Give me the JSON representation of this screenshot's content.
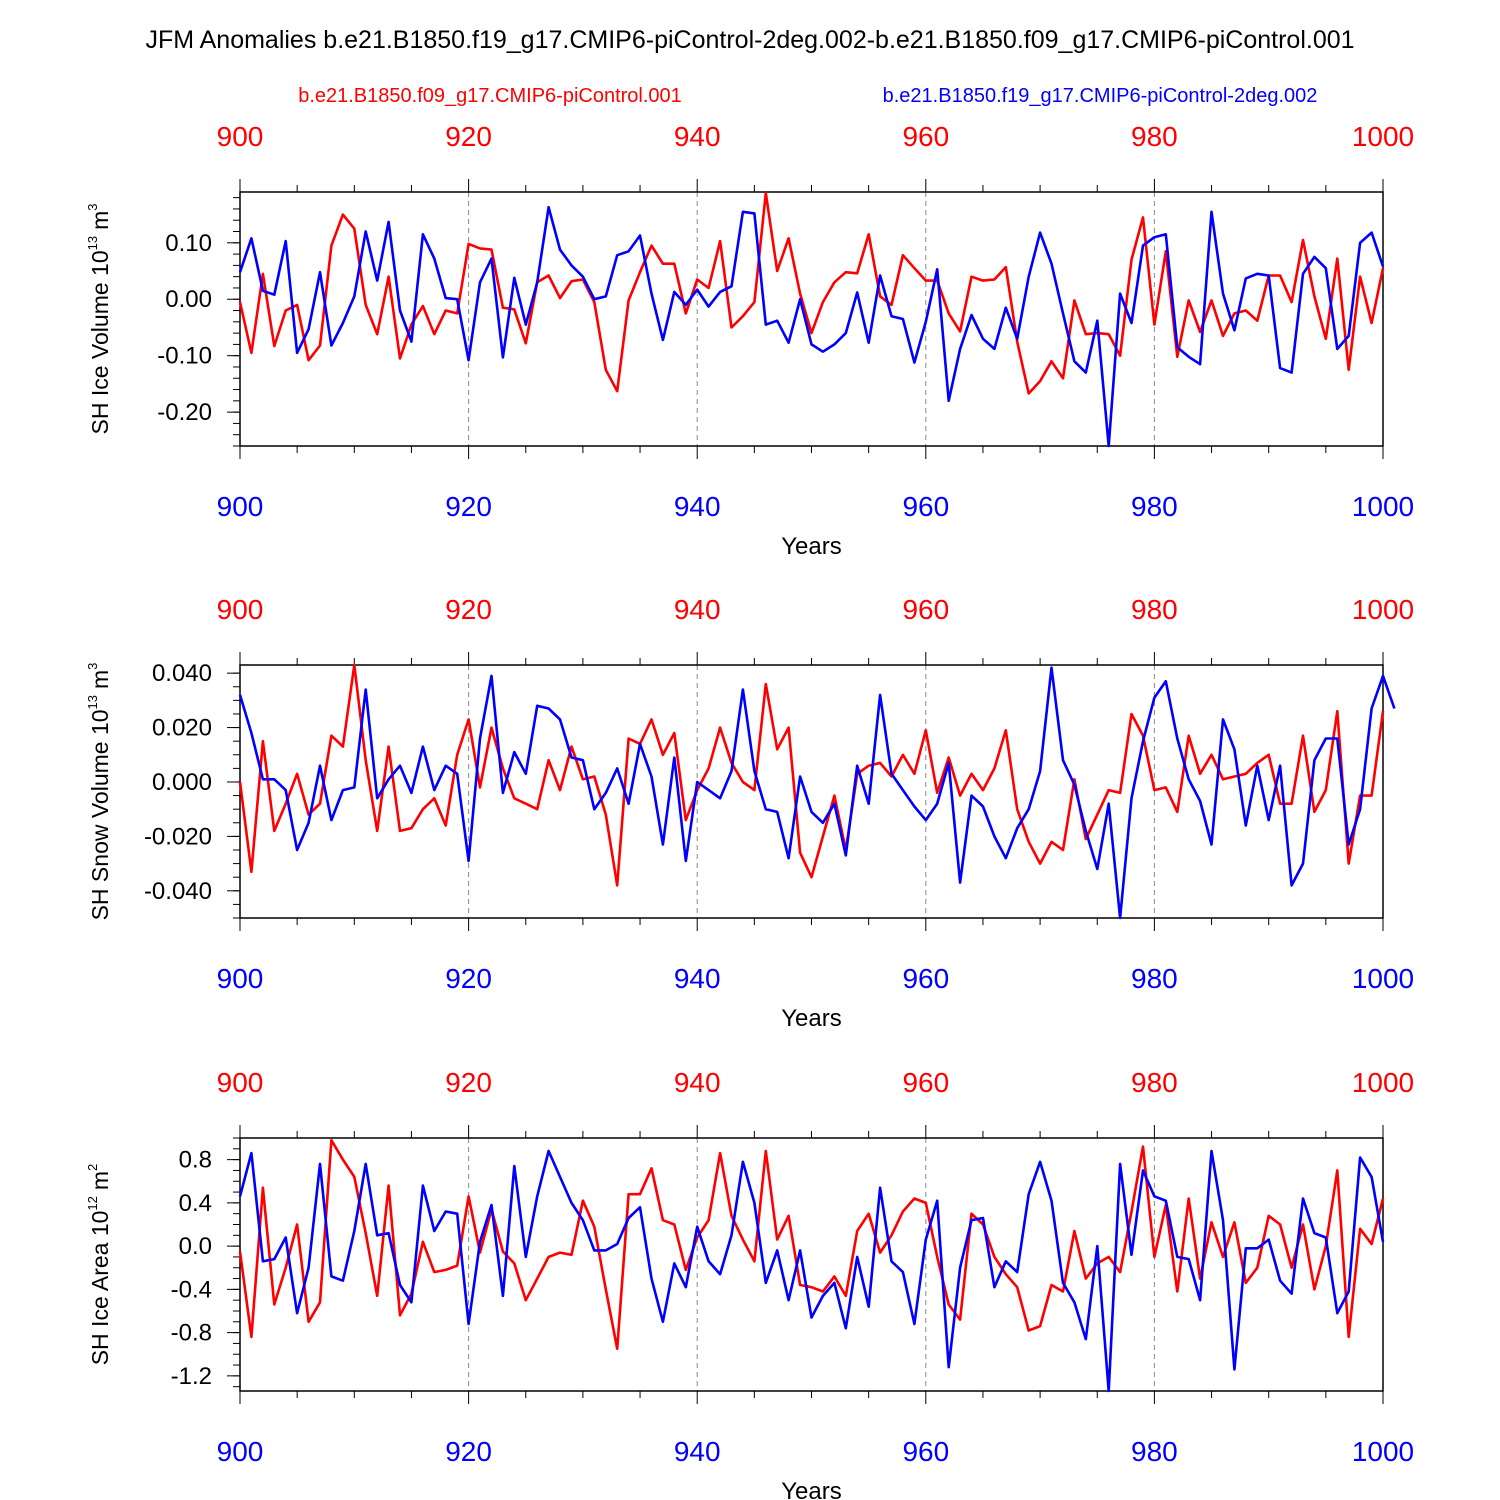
{
  "title": "JFM Anomalies b.e21.B1850.f19_g17.CMIP6-piControl-2deg.002-b.e21.B1850.f09_g17.CMIP6-piControl.001",
  "legend": {
    "red_label": "b.e21.B1850.f09_g17.CMIP6-piControl.001",
    "blue_label": "b.e21.B1850.f19_g17.CMIP6-piControl-2deg.002"
  },
  "colors": {
    "red": "#ff0000",
    "blue": "#0000ff",
    "axis": "#000000",
    "grid": "#888888"
  },
  "chart_data": [
    {
      "type": "line",
      "ylabel_main": "SH Ice Volume 10",
      "ylabel_exp": "13",
      "ylabel_unit": "m",
      "ylabel_unit_exp": "3",
      "xlabel": "Years",
      "xlim": [
        900,
        1000
      ],
      "ylim": [
        -0.26,
        0.19
      ],
      "yticks": [
        0.1,
        0.0,
        -0.1,
        -0.2
      ],
      "ytick_labels": [
        "0.10",
        "0.00",
        "-0.10",
        "-0.20"
      ],
      "yminor_step": 0.02,
      "xticks": [
        900,
        920,
        940,
        960,
        980,
        1000
      ],
      "xtick_labels": [
        "900",
        "920",
        "940",
        "960",
        "980",
        "1000"
      ],
      "x_start": 900,
      "series": [
        {
          "name": "b.e21.B1850.f09_g17.CMIP6-piControl.001",
          "color": "red",
          "values": [
            -0.005,
            -0.095,
            0.045,
            -0.083,
            -0.02,
            -0.01,
            -0.108,
            -0.082,
            0.095,
            0.15,
            0.125,
            -0.01,
            -0.062,
            0.04,
            -0.105,
            -0.045,
            -0.012,
            -0.062,
            -0.02,
            -0.025,
            0.098,
            0.09,
            0.088,
            -0.015,
            -0.018,
            -0.078,
            0.03,
            0.042,
            0.002,
            0.032,
            0.035,
            -0.005,
            -0.125,
            -0.163,
            -0.002,
            0.048,
            0.095,
            0.063,
            0.063,
            -0.025,
            0.035,
            0.02,
            0.103,
            -0.05,
            -0.03,
            -0.005,
            0.188,
            0.05,
            0.108,
            0.01,
            -0.06,
            -0.005,
            0.03,
            0.048,
            0.046,
            0.115,
            0.005,
            -0.01,
            0.078,
            0.055,
            0.033,
            0.033,
            -0.025,
            -0.057,
            0.04,
            0.033,
            0.035,
            0.057,
            -0.075,
            -0.167,
            -0.145,
            -0.11,
            -0.14,
            -0.002,
            -0.062,
            -0.06,
            -0.062,
            -0.1,
            0.07,
            0.145,
            -0.045,
            0.085,
            -0.102,
            -0.002,
            -0.058,
            -0.002,
            -0.065,
            -0.025,
            -0.02,
            -0.038,
            0.042,
            0.042,
            -0.005,
            0.105,
            0.005,
            -0.07,
            0.072,
            -0.125,
            0.04,
            -0.042,
            0.055
          ]
        },
        {
          "name": "b.e21.B1850.f19_g17.CMIP6-piControl-2deg.002",
          "color": "blue",
          "values": [
            0.048,
            0.108,
            0.015,
            0.008,
            0.103,
            -0.095,
            -0.053,
            0.048,
            -0.082,
            -0.042,
            0.005,
            0.12,
            0.033,
            0.137,
            -0.02,
            -0.075,
            0.115,
            0.072,
            0.002,
            0.0,
            -0.108,
            0.03,
            0.072,
            -0.103,
            0.038,
            -0.045,
            0.03,
            0.163,
            0.088,
            0.06,
            0.04,
            0.0,
            0.005,
            0.078,
            0.085,
            0.113,
            0.01,
            -0.072,
            0.013,
            -0.01,
            0.017,
            -0.013,
            0.013,
            0.023,
            0.155,
            0.152,
            -0.045,
            -0.038,
            -0.077,
            0.0,
            -0.08,
            -0.093,
            -0.08,
            -0.06,
            0.012,
            -0.077,
            0.042,
            -0.03,
            -0.035,
            -0.112,
            -0.04,
            0.053,
            -0.18,
            -0.088,
            -0.028,
            -0.07,
            -0.088,
            -0.015,
            -0.07,
            0.04,
            0.118,
            0.063,
            -0.025,
            -0.11,
            -0.13,
            -0.038,
            -0.26,
            0.01,
            -0.042,
            0.095,
            0.11,
            0.115,
            -0.085,
            -0.102,
            -0.115,
            0.155,
            0.01,
            -0.055,
            0.037,
            0.045,
            0.042,
            -0.122,
            -0.13,
            0.045,
            0.075,
            0.055,
            -0.088,
            -0.065,
            0.1,
            0.118,
            0.058
          ]
        }
      ]
    },
    {
      "type": "line",
      "ylabel_main": "SH Snow Volume 10",
      "ylabel_exp": "13",
      "ylabel_unit": "m",
      "ylabel_unit_exp": "3",
      "xlabel": "Years",
      "xlim": [
        900,
        1000
      ],
      "ylim": [
        -0.05,
        0.043
      ],
      "yticks": [
        0.04,
        0.02,
        0.0,
        -0.02,
        -0.04
      ],
      "ytick_labels": [
        "0.040",
        "0.020",
        "0.000",
        "-0.020",
        "-0.040"
      ],
      "yminor_step": 0.005,
      "xticks": [
        900,
        920,
        940,
        960,
        980,
        1000
      ],
      "xtick_labels": [
        "900",
        "920",
        "940",
        "960",
        "980",
        "1000"
      ],
      "x_start": 900,
      "series": [
        {
          "name": "b.e21.B1850.f09_g17.CMIP6-piControl.001",
          "color": "red",
          "values": [
            0.0,
            -0.033,
            0.015,
            -0.018,
            -0.008,
            0.003,
            -0.012,
            -0.008,
            0.017,
            0.013,
            0.043,
            0.008,
            -0.018,
            0.013,
            -0.018,
            -0.017,
            -0.01,
            -0.006,
            -0.016,
            0.01,
            0.023,
            -0.002,
            0.02,
            0.005,
            -0.006,
            -0.008,
            -0.01,
            0.008,
            -0.003,
            0.013,
            0.001,
            0.002,
            -0.012,
            -0.038,
            0.016,
            0.014,
            0.023,
            0.01,
            0.018,
            -0.014,
            -0.003,
            0.005,
            0.02,
            0.007,
            0.0,
            -0.003,
            0.036,
            0.012,
            0.02,
            -0.026,
            -0.035,
            -0.02,
            -0.005,
            -0.025,
            0.003,
            0.006,
            0.007,
            0.002,
            0.01,
            0.003,
            0.019,
            -0.004,
            0.009,
            -0.005,
            0.003,
            -0.003,
            0.005,
            0.019,
            -0.01,
            -0.022,
            -0.03,
            -0.022,
            -0.025,
            0.001,
            -0.021,
            -0.012,
            -0.003,
            -0.004,
            0.025,
            0.017,
            -0.003,
            -0.002,
            -0.011,
            0.017,
            0.003,
            0.01,
            0.001,
            0.002,
            0.003,
            0.007,
            0.01,
            -0.008,
            -0.008,
            0.017,
            -0.011,
            -0.003,
            0.026,
            -0.03,
            -0.005,
            -0.005,
            0.026
          ]
        },
        {
          "name": "b.e21.B1850.f19_g17.CMIP6-piControl-2deg.002",
          "color": "blue",
          "values": [
            0.032,
            0.018,
            0.001,
            0.001,
            -0.003,
            -0.025,
            -0.015,
            0.006,
            -0.014,
            -0.003,
            -0.002,
            0.034,
            -0.006,
            0.001,
            0.006,
            -0.004,
            0.013,
            -0.003,
            0.006,
            0.003,
            -0.029,
            0.016,
            0.039,
            -0.004,
            0.011,
            0.003,
            0.028,
            0.027,
            0.023,
            0.009,
            0.008,
            -0.01,
            -0.004,
            0.005,
            -0.008,
            0.014,
            0.002,
            -0.023,
            0.009,
            -0.029,
            0.0,
            -0.003,
            -0.006,
            0.004,
            0.034,
            0.004,
            -0.01,
            -0.011,
            -0.028,
            0.002,
            -0.011,
            -0.015,
            -0.008,
            -0.027,
            0.006,
            -0.008,
            0.032,
            0.003,
            -0.003,
            -0.009,
            -0.014,
            -0.008,
            0.007,
            -0.037,
            -0.005,
            -0.009,
            -0.02,
            -0.028,
            -0.017,
            -0.01,
            0.004,
            0.042,
            0.008,
            -0.001,
            -0.018,
            -0.032,
            -0.008,
            -0.05,
            -0.006,
            0.015,
            0.031,
            0.037,
            0.016,
            0.001,
            -0.007,
            -0.023,
            0.023,
            0.012,
            -0.016,
            0.006,
            -0.014,
            0.006,
            -0.038,
            -0.03,
            0.008,
            0.016,
            0.016,
            -0.023,
            -0.01,
            0.027,
            0.039,
            0.027
          ]
        }
      ]
    },
    {
      "type": "line",
      "ylabel_main": "SH Ice Area 10",
      "ylabel_exp": "12",
      "ylabel_unit": "m",
      "ylabel_unit_exp": "2",
      "xlabel": "Years",
      "xlim": [
        900,
        1000
      ],
      "ylim": [
        -1.34,
        1.0
      ],
      "yticks": [
        0.8,
        0.4,
        0.0,
        -0.4,
        -0.8,
        -1.2
      ],
      "ytick_labels": [
        "0.8",
        "0.4",
        "0.0",
        "-0.4",
        "-0.8",
        "-1.2"
      ],
      "yminor_step": 0.1,
      "xticks": [
        900,
        920,
        940,
        960,
        980,
        1000
      ],
      "xtick_labels": [
        "900",
        "920",
        "940",
        "960",
        "980",
        "1000"
      ],
      "x_start": 900,
      "series": [
        {
          "name": "b.e21.B1850.f09_g17.CMIP6-piControl.001",
          "color": "red",
          "values": [
            -0.05,
            -0.84,
            0.54,
            -0.54,
            -0.2,
            0.2,
            -0.7,
            -0.52,
            0.98,
            0.8,
            0.64,
            0.12,
            -0.46,
            0.56,
            -0.64,
            -0.44,
            0.04,
            -0.24,
            -0.22,
            -0.18,
            0.46,
            -0.06,
            0.34,
            -0.05,
            -0.16,
            -0.5,
            -0.3,
            -0.1,
            -0.06,
            -0.08,
            0.42,
            0.18,
            -0.4,
            -0.95,
            0.48,
            0.48,
            0.72,
            0.24,
            0.2,
            -0.22,
            0.08,
            0.24,
            0.86,
            0.28,
            0.06,
            -0.14,
            0.88,
            0.06,
            0.28,
            -0.36,
            -0.38,
            -0.42,
            -0.28,
            -0.46,
            0.14,
            0.3,
            -0.06,
            0.1,
            0.32,
            0.44,
            0.4,
            -0.1,
            -0.54,
            -0.68,
            0.3,
            0.2,
            -0.1,
            -0.26,
            -0.38,
            -0.78,
            -0.74,
            -0.36,
            -0.42,
            0.14,
            -0.3,
            -0.16,
            -0.1,
            -0.24,
            0.32,
            0.92,
            -0.1,
            0.38,
            -0.42,
            0.44,
            -0.3,
            0.22,
            -0.1,
            0.22,
            -0.34,
            -0.2,
            0.28,
            0.2,
            -0.2,
            0.2,
            -0.4,
            0.0,
            0.7,
            -0.84,
            0.16,
            0.02,
            0.44
          ]
        },
        {
          "name": "b.e21.B1850.f19_g17.CMIP6-piControl-2deg.002",
          "color": "blue",
          "values": [
            0.46,
            0.86,
            -0.14,
            -0.12,
            0.08,
            -0.62,
            -0.2,
            0.76,
            -0.28,
            -0.32,
            0.14,
            0.76,
            0.1,
            0.12,
            -0.36,
            -0.52,
            0.56,
            0.14,
            0.32,
            0.3,
            -0.72,
            0.04,
            0.38,
            -0.46,
            0.74,
            -0.1,
            0.46,
            0.88,
            0.64,
            0.4,
            0.24,
            -0.04,
            -0.04,
            0.02,
            0.26,
            0.36,
            -0.3,
            -0.7,
            -0.16,
            -0.38,
            0.18,
            -0.14,
            -0.26,
            0.1,
            0.78,
            0.4,
            -0.34,
            -0.04,
            -0.5,
            -0.04,
            -0.66,
            -0.46,
            -0.34,
            -0.76,
            -0.1,
            -0.56,
            0.54,
            -0.14,
            -0.24,
            -0.72,
            0.06,
            0.42,
            -1.12,
            -0.2,
            0.24,
            0.26,
            -0.38,
            -0.14,
            -0.24,
            0.48,
            0.78,
            0.42,
            -0.34,
            -0.52,
            -0.86,
            0.0,
            -1.34,
            0.76,
            -0.08,
            0.7,
            0.46,
            0.42,
            -0.1,
            -0.12,
            -0.5,
            0.88,
            0.24,
            -1.14,
            -0.02,
            -0.02,
            0.06,
            -0.32,
            -0.44,
            0.44,
            0.12,
            0.08,
            -0.62,
            -0.42,
            0.82,
            0.64,
            0.04
          ]
        }
      ]
    }
  ]
}
